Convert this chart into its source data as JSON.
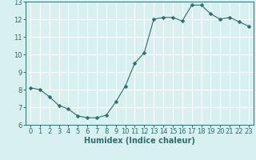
{
  "x": [
    0,
    1,
    2,
    3,
    4,
    5,
    6,
    7,
    8,
    9,
    10,
    11,
    12,
    13,
    14,
    15,
    16,
    17,
    18,
    19,
    20,
    21,
    22,
    23
  ],
  "y": [
    8.1,
    8.0,
    7.6,
    7.1,
    6.9,
    6.5,
    6.4,
    6.4,
    6.55,
    7.3,
    8.2,
    9.5,
    10.1,
    12.0,
    12.1,
    12.1,
    11.9,
    12.8,
    12.8,
    12.3,
    12.0,
    12.1,
    11.85,
    11.6
  ],
  "line_color": "#2d6e6e",
  "marker": "D",
  "marker_size": 2.5,
  "bg_color": "#d8f0f0",
  "grid_color": "#ffffff",
  "xlabel": "Humidex (Indice chaleur)",
  "ylim": [
    6,
    13
  ],
  "xlim": [
    -0.5,
    23.5
  ],
  "yticks": [
    6,
    7,
    8,
    9,
    10,
    11,
    12,
    13
  ],
  "xticks": [
    0,
    1,
    2,
    3,
    4,
    5,
    6,
    7,
    8,
    9,
    10,
    11,
    12,
    13,
    14,
    15,
    16,
    17,
    18,
    19,
    20,
    21,
    22,
    23
  ],
  "tick_color": "#2d6e6e",
  "label_fontsize": 7,
  "tick_fontsize": 6
}
